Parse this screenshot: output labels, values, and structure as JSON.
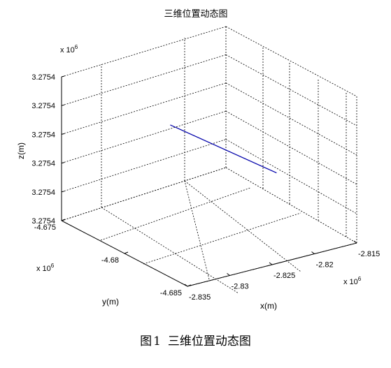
{
  "chart_data": {
    "type": "line",
    "title": "三维位置动态图",
    "xlabel": "x(m)",
    "ylabel": "y(m)",
    "zlabel": "z(m)",
    "x_multiplier": "x 10^6",
    "y_multiplier": "x 10^6",
    "z_multiplier": "x 10^6",
    "x_ticks": [
      "-2.835",
      "-2.83",
      "-2.825",
      "-2.82",
      "-2.815"
    ],
    "x_tick_values": [
      -2.835,
      -2.83,
      -2.825,
      -2.82,
      -2.815
    ],
    "y_ticks": [
      "-4.685",
      "-4.68",
      "-4.675"
    ],
    "y_tick_values": [
      -4.685,
      -4.68,
      -4.675
    ],
    "z_ticks": [
      "3.2754",
      "3.2754",
      "3.2754",
      "3.2754",
      "3.2754",
      "3.2754"
    ],
    "xlim": [
      -2.835,
      -2.815
    ],
    "ylim": [
      -4.685,
      -4.675
    ],
    "grid": true,
    "line_color": "#0000aa",
    "series": [
      {
        "x": [
          -2.8235,
          -2.8209
        ],
        "y": [
          -4.6759,
          -4.6826
        ],
        "z": [
          3.27543,
          3.27542
        ]
      }
    ]
  },
  "caption": {
    "prefix": "图",
    "number": "1",
    "text": "三维位置动态图"
  }
}
